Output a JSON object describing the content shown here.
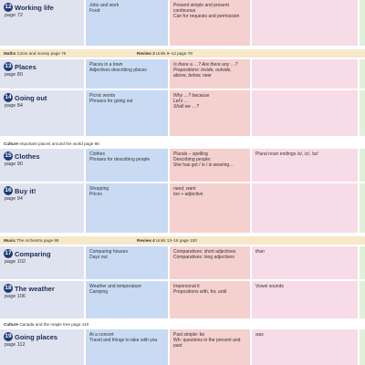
{
  "rows": [
    {
      "num": "12",
      "title": "Working life",
      "page": "page 72",
      "vocab": "Jobs and work\nFood",
      "grammar": "Present simple and present\ncontinuous\nCan for requests and permission",
      "pron": ""
    },
    {
      "num": "13",
      "title": "Places",
      "page": "page 80",
      "vocab": "Places in a town\nAdjectives describing places",
      "grammar": "Is there a …? Are there any …?\nPrepositions: inside, outside,\nabove, below, near",
      "pron": ""
    },
    {
      "num": "14",
      "title": "Going out",
      "page": "page 84",
      "vocab": "Picnic words\nPhrases for going out",
      "grammar": "Why …? because\nLet's …\nShall we …?",
      "pron": ""
    },
    {
      "num": "15",
      "title": "Clothes",
      "page": "page 90",
      "vocab": "Clothes\nPhrases for describing people",
      "grammar": "Plurals – spelling\nDescribing people:\nShe has got / is / is wearing…",
      "pron": "Plural noun endings /s/, /z/, /ɪz/"
    },
    {
      "num": "16",
      "title": "Buy it!",
      "page": "page 94",
      "vocab": "Shopping\nPrices",
      "grammar": "need, want\ntoo + adjective",
      "pron": ""
    },
    {
      "num": "17",
      "title": "Comparing",
      "page": "page 102",
      "vocab": "Comparing houses\nDays out",
      "grammar": "Comparatives: short adjectives\nComparatives: long adjectives",
      "pron": "than"
    },
    {
      "num": "18",
      "title": "The weather",
      "page": "page 106",
      "vocab": "Weather and temperature\nCamping",
      "grammar": "Impersonal it\nPrepositions with, for, until",
      "pron": "Vowel sounds"
    },
    {
      "num": "19",
      "title": "Going places",
      "page": "page 112",
      "vocab": "At a concert\nTravel and things to take with you",
      "grammar": "Past simple: be\nWh- questions in the present and\npast",
      "pron": "was"
    }
  ],
  "bands": {
    "maths": {
      "label": "Maths",
      "text": "Coins and money page 76",
      "review_label": "Review 3",
      "review_text": "Units 9–12 page 78"
    },
    "culture1": {
      "label": "Culture",
      "text": "Important places around the world page 88"
    },
    "music": {
      "label": "Music",
      "text": "The orchestra page 98",
      "review_label": "Review 4",
      "review_text": "Units 13–16 page 100"
    },
    "culture2": {
      "label": "Culture",
      "text": "Canada and the maple tree page 110"
    }
  }
}
